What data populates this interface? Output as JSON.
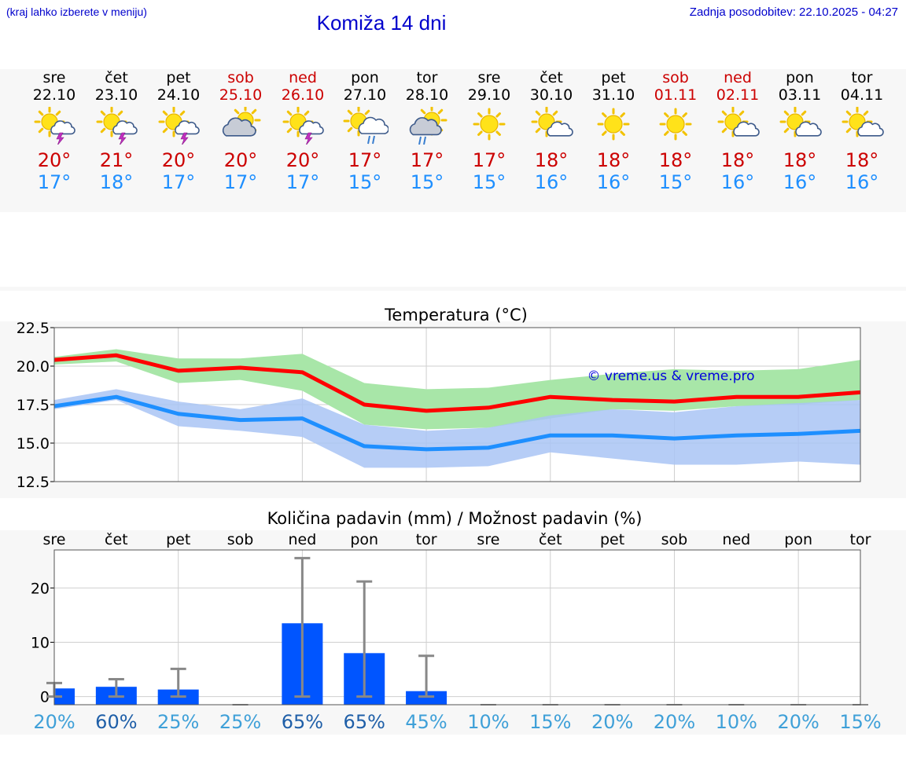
{
  "header": {
    "hint": "(kraj lahko izberete v meniju)",
    "title": "Komiža 14 dni",
    "updated": "Zadnja posodobitev: 22.10.2025 - 04:27"
  },
  "colors": {
    "title": "#0000cc",
    "weekend": "#cc0000",
    "tmax": "#ff0000",
    "tmin": "#1e8fff",
    "bar": "#0055ff",
    "range_max": "#a8e6a8",
    "range_min": "#a9c4f4",
    "errorbar": "#888888"
  },
  "days": [
    {
      "name": "sre",
      "date": "22.10",
      "icon": "sun-cloud-storm-icon",
      "tmax": "20°",
      "tmin": "17°",
      "weekend": false
    },
    {
      "name": "čet",
      "date": "23.10",
      "icon": "sun-cloud-storm-icon",
      "tmax": "21°",
      "tmin": "18°",
      "weekend": false
    },
    {
      "name": "pet",
      "date": "24.10",
      "icon": "sun-cloud-storm-icon",
      "tmax": "20°",
      "tmin": "17°",
      "weekend": false
    },
    {
      "name": "sob",
      "date": "25.10",
      "icon": "cloud-sun-icon",
      "tmax": "20°",
      "tmin": "17°",
      "weekend": true
    },
    {
      "name": "ned",
      "date": "26.10",
      "icon": "sun-cloud-storm-icon",
      "tmax": "20°",
      "tmin": "17°",
      "weekend": true
    },
    {
      "name": "pon",
      "date": "27.10",
      "icon": "sun-cloud-rain-icon",
      "tmax": "17°",
      "tmin": "15°",
      "weekend": false
    },
    {
      "name": "tor",
      "date": "28.10",
      "icon": "cloud-sun-rain-icon",
      "tmax": "17°",
      "tmin": "15°",
      "weekend": false
    },
    {
      "name": "sre",
      "date": "29.10",
      "icon": "sun-icon",
      "tmax": "17°",
      "tmin": "15°",
      "weekend": false
    },
    {
      "name": "čet",
      "date": "30.10",
      "icon": "sun-small-cloud-icon",
      "tmax": "18°",
      "tmin": "16°",
      "weekend": false
    },
    {
      "name": "pet",
      "date": "31.10",
      "icon": "sun-icon",
      "tmax": "18°",
      "tmin": "16°",
      "weekend": false
    },
    {
      "name": "sob",
      "date": "01.11",
      "icon": "sun-icon",
      "tmax": "18°",
      "tmin": "15°",
      "weekend": true
    },
    {
      "name": "ned",
      "date": "02.11",
      "icon": "sun-small-cloud-icon",
      "tmax": "18°",
      "tmin": "16°",
      "weekend": true
    },
    {
      "name": "pon",
      "date": "03.11",
      "icon": "sun-small-cloud-icon",
      "tmax": "18°",
      "tmin": "16°",
      "weekend": false
    },
    {
      "name": "tor",
      "date": "04.11",
      "icon": "sun-small-cloud-icon",
      "tmax": "18°",
      "tmin": "16°",
      "weekend": false
    }
  ],
  "chart_data": [
    {
      "type": "line",
      "title": "Temperatura (°C)",
      "watermark": "© vreme.us & vreme.pro",
      "ylim": [
        12.5,
        22.5
      ],
      "yticks": [
        "12.5",
        "15.0",
        "17.5",
        "20.0",
        "22.5"
      ],
      "grid": true,
      "x": [
        0,
        1,
        2,
        3,
        4,
        5,
        6,
        7,
        8,
        9,
        10,
        11,
        12,
        13
      ],
      "series": [
        {
          "color": "#ff0000",
          "values": [
            20.4,
            20.7,
            19.7,
            19.9,
            19.6,
            17.5,
            17.1,
            17.3,
            18.0,
            17.8,
            17.7,
            18.0,
            18.0,
            18.3
          ],
          "range_low": [
            20.1,
            20.3,
            18.9,
            19.1,
            18.4,
            16.2,
            15.9,
            16.0,
            16.6,
            17.2,
            17.1,
            17.4,
            17.5,
            17.8
          ],
          "range_high": [
            20.6,
            21.1,
            20.5,
            20.5,
            20.8,
            18.9,
            18.5,
            18.6,
            19.1,
            19.5,
            19.8,
            19.7,
            19.8,
            20.4
          ]
        },
        {
          "color": "#1e8fff",
          "values": [
            17.4,
            18.0,
            16.9,
            16.5,
            16.6,
            14.8,
            14.6,
            14.7,
            15.5,
            15.5,
            15.3,
            15.5,
            15.6,
            15.8
          ],
          "range_low": [
            17.2,
            17.8,
            16.1,
            15.8,
            15.4,
            13.4,
            13.4,
            13.5,
            14.4,
            14.0,
            13.6,
            13.6,
            13.8,
            13.6
          ],
          "range_high": [
            17.8,
            18.5,
            17.7,
            17.2,
            17.9,
            16.2,
            15.8,
            16.0,
            16.8,
            17.2,
            17.0,
            17.4,
            17.6,
            17.8
          ]
        }
      ]
    },
    {
      "type": "bar",
      "title": "Količina padavin (mm) / Možnost padavin (%)",
      "categories": [
        "sre",
        "čet",
        "pet",
        "sob",
        "ned",
        "pon",
        "tor",
        "sre",
        "čet",
        "pet",
        "sob",
        "ned",
        "pon",
        "tor"
      ],
      "values": [
        1.5,
        1.8,
        1.3,
        0,
        13.5,
        8.0,
        1.0,
        0,
        0,
        0,
        0,
        0,
        0,
        0
      ],
      "error_high": [
        2.5,
        3.2,
        5.1,
        0,
        25.5,
        21.2,
        7.5,
        0,
        0,
        0,
        0,
        0,
        0,
        0
      ],
      "probability": [
        "20%",
        "60%",
        "25%",
        "25%",
        "65%",
        "65%",
        "45%",
        "10%",
        "15%",
        "20%",
        "20%",
        "10%",
        "20%",
        "15%"
      ],
      "probability_emphasis": [
        false,
        true,
        false,
        false,
        true,
        true,
        false,
        false,
        false,
        false,
        false,
        false,
        false,
        false
      ],
      "ylim": [
        -1.5,
        27
      ],
      "yticks": [
        "0",
        "10",
        "20"
      ],
      "grid": true
    }
  ]
}
